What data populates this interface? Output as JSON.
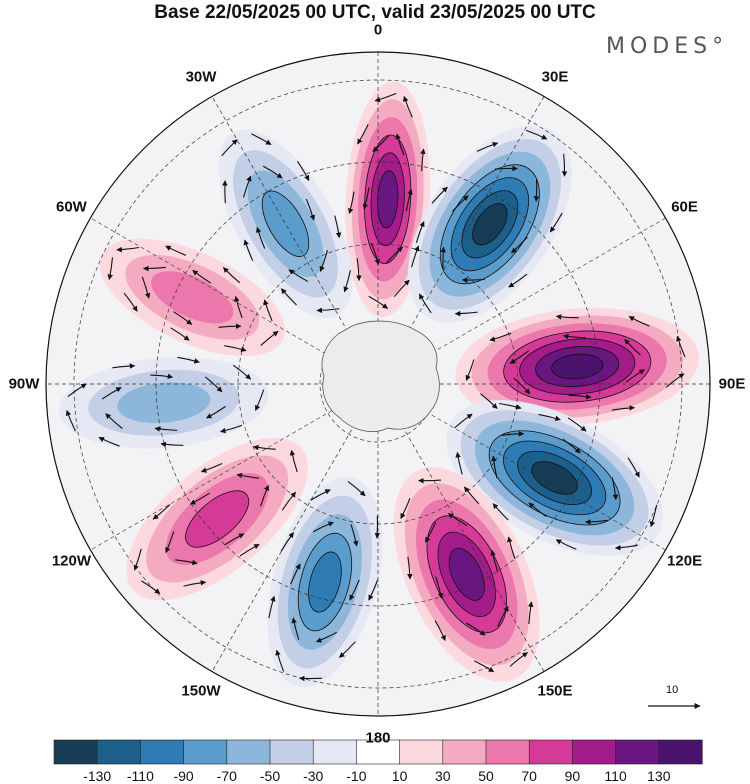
{
  "title": "Base 22/05/2025 00 UTC, valid 23/05/2025 00 UTC",
  "brand": "MODES°",
  "longitude_labels": [
    {
      "text": "0",
      "deg": 0
    },
    {
      "text": "30E",
      "deg": 30
    },
    {
      "text": "60E",
      "deg": 60
    },
    {
      "text": "90E",
      "deg": 90
    },
    {
      "text": "120E",
      "deg": 120
    },
    {
      "text": "150E",
      "deg": 150
    },
    {
      "text": "180",
      "deg": 180
    },
    {
      "text": "150W",
      "deg": 210
    },
    {
      "text": "120W",
      "deg": 240
    },
    {
      "text": "90W",
      "deg": 270
    },
    {
      "text": "60W",
      "deg": 300
    },
    {
      "text": "30W",
      "deg": 330
    }
  ],
  "colorbar": {
    "labels": [
      "-130",
      "-110",
      "-90",
      "-70",
      "-50",
      "-30",
      "-10",
      "10",
      "30",
      "50",
      "70",
      "90",
      "110",
      "130"
    ],
    "colors": [
      "#173c55",
      "#1c5f8b",
      "#2f7cb4",
      "#5a9dcd",
      "#8cb6da",
      "#c3cfe6",
      "#e6e8f4",
      "#ffffff",
      "#fbd9df",
      "#f4aac1",
      "#ec77ad",
      "#d53a98",
      "#a41b8a",
      "#6a1680",
      "#4a136e"
    ]
  },
  "reference_vector": {
    "label": "10"
  },
  "anomaly_centers": [
    {
      "name": "blob-0",
      "lon": 3,
      "sign": "positive",
      "peak": 110
    },
    {
      "name": "blob-30w",
      "lon": 330,
      "sign": "negative",
      "peak": -70
    },
    {
      "name": "blob-35e",
      "lon": 35,
      "sign": "negative",
      "peak": -130
    },
    {
      "name": "blob-85e",
      "lon": 85,
      "sign": "positive",
      "peak": 130
    },
    {
      "name": "blob-118e",
      "lon": 118,
      "sign": "negative",
      "peak": -130
    },
    {
      "name": "blob-155e",
      "lon": 155,
      "sign": "positive",
      "peak": 110
    },
    {
      "name": "blob-195",
      "lon": 195,
      "sign": "negative",
      "peak": -90
    },
    {
      "name": "blob-230",
      "lon": 230,
      "sign": "positive",
      "peak": 70
    },
    {
      "name": "blob-265",
      "lon": 265,
      "sign": "negative",
      "peak": -50
    },
    {
      "name": "blob-295",
      "lon": 295,
      "sign": "positive",
      "peak": 50
    }
  ]
}
